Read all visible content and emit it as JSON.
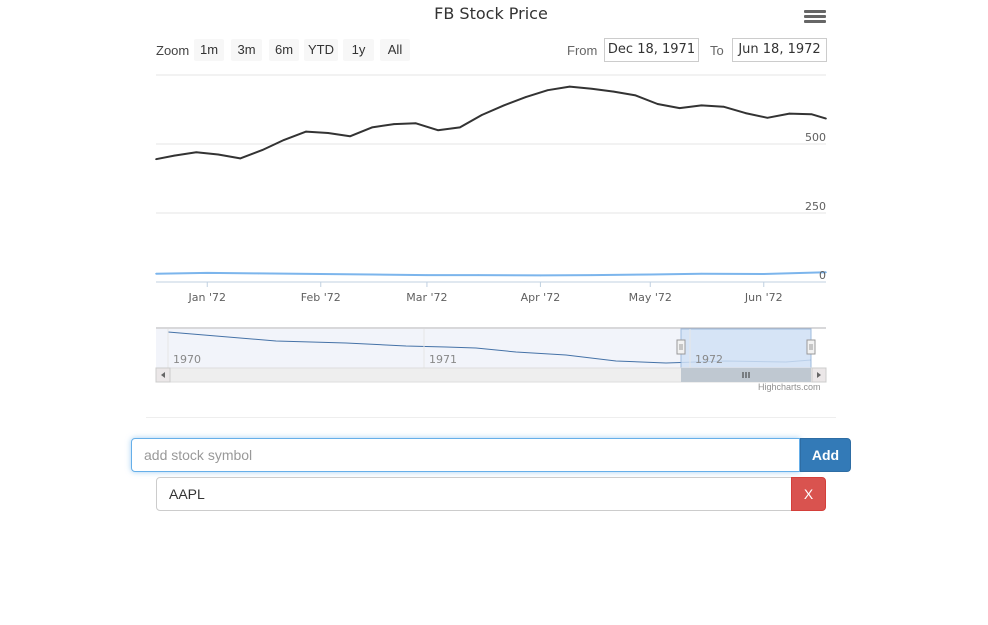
{
  "chart": {
    "title": "FB Stock Price",
    "zoom_label": "Zoom",
    "zoom_buttons": [
      "1m",
      "3m",
      "6m",
      "YTD",
      "1y",
      "All"
    ],
    "from_label": "From",
    "from_value": "Dec 18, 1971",
    "to_label": "To",
    "to_value": "Jun 18, 1972",
    "credits": "Highcharts.com"
  },
  "chart_data": {
    "type": "line",
    "x_tick_labels": [
      "Jan '72",
      "Feb '72",
      "Mar '72",
      "Apr '72",
      "May '72",
      "Jun '72"
    ],
    "y_tick_labels": [
      "0",
      "250",
      "500"
    ],
    "ylim": [
      0,
      750
    ],
    "grid": true,
    "series": [
      {
        "color": "#333333",
        "x": [
          "1971-12-18",
          "1971-12-23",
          "1971-12-29",
          "1972-01-04",
          "1972-01-10",
          "1972-01-16",
          "1972-01-22",
          "1972-01-28",
          "1972-02-03",
          "1972-02-09",
          "1972-02-15",
          "1972-02-21",
          "1972-02-27",
          "1972-03-04",
          "1972-03-10",
          "1972-03-16",
          "1972-03-22",
          "1972-03-28",
          "1972-04-03",
          "1972-04-09",
          "1972-04-15",
          "1972-04-21",
          "1972-04-27",
          "1972-05-03",
          "1972-05-09",
          "1972-05-15",
          "1972-05-21",
          "1972-05-27",
          "1972-06-02",
          "1972-06-08",
          "1972-06-14",
          "1972-06-18"
        ],
        "values": [
          445,
          458,
          470,
          462,
          448,
          478,
          515,
          545,
          540,
          528,
          560,
          572,
          575,
          550,
          560,
          605,
          640,
          670,
          695,
          708,
          700,
          690,
          676,
          645,
          630,
          640,
          635,
          612,
          595,
          610,
          608,
          592
        ]
      },
      {
        "color": "#7cb5ec",
        "x": [
          "1971-12-18",
          "1972-01-01",
          "1972-01-15",
          "1972-02-01",
          "1972-02-15",
          "1972-03-01",
          "1972-03-15",
          "1972-04-01",
          "1972-04-15",
          "1972-05-01",
          "1972-05-15",
          "1972-06-01",
          "1972-06-18"
        ],
        "values": [
          30,
          33,
          31,
          29,
          27,
          25,
          25,
          24,
          25,
          27,
          30,
          29,
          35
        ]
      }
    ],
    "navigator": {
      "x_labels": [
        "1970",
        "1971",
        "1972"
      ]
    }
  },
  "form": {
    "placeholder": "add stock symbol",
    "add_label": "Add"
  },
  "stocks": [
    {
      "symbol": "AAPL",
      "remove_label": "X"
    }
  ]
}
